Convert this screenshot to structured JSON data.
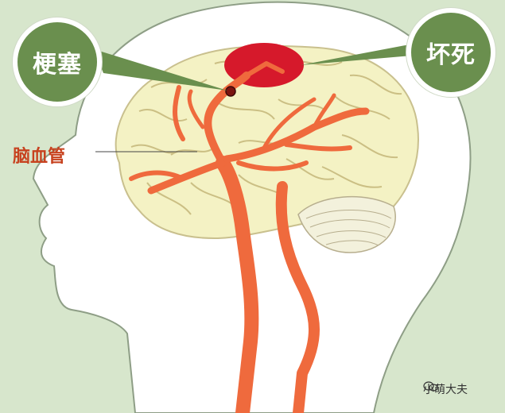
{
  "labels": {
    "infarct": "梗塞",
    "necrosis": "坏死",
    "vessel": "脑血管"
  },
  "watermark": {
    "text": "小萌大夫"
  },
  "colors": {
    "background": "#d7e6cc",
    "label_circle": "#6a8f4e",
    "artery": "#ef6a3d",
    "brain": "#f4f2c4",
    "necrosis_area": "#d6192b",
    "vessel_label": "#c7421f"
  },
  "icons": {
    "watermark": "wechat-icon"
  }
}
